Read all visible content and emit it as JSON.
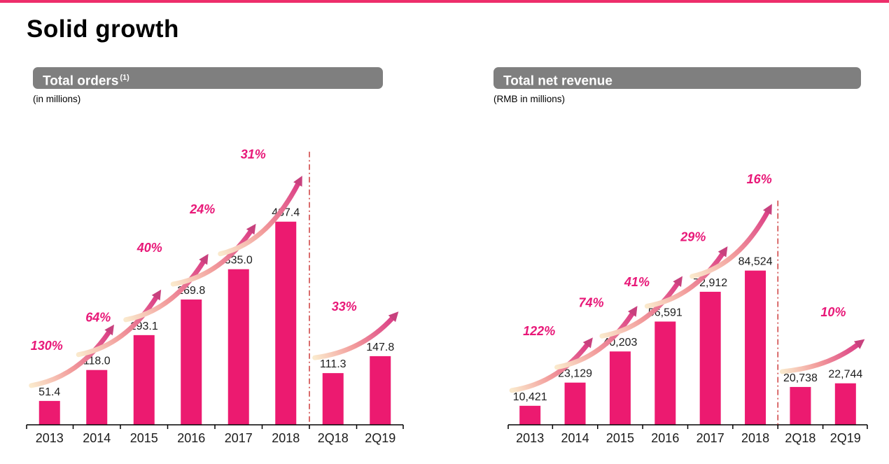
{
  "page": {
    "title": "Solid growth"
  },
  "colors": {
    "accent_bar": "#ED2E6B",
    "header_bg": "#7F7F7F",
    "bar": "#EC1A70",
    "percent_text": "#E81878",
    "divider": "#D04848",
    "axis": "#000000",
    "value_text": "#1C1C1C",
    "arrow_gradient": [
      "#FAE9CC",
      "#F29B9B",
      "#DB3E86"
    ],
    "arrow_head": "#C8417E"
  },
  "chart_data": [
    {
      "type": "bar",
      "title": "Total orders",
      "title_superscript": "(1)",
      "subtitle": "(in millions)",
      "categories": [
        "2013",
        "2014",
        "2015",
        "2016",
        "2017",
        "2018",
        "2Q18",
        "2Q19"
      ],
      "values": [
        51.4,
        118.0,
        193.1,
        269.8,
        335.0,
        437.4,
        111.3,
        147.8
      ],
      "value_labels": [
        "51.4",
        "118.0",
        "193.1",
        "269.8",
        "335.0",
        "437.4",
        "111.3",
        "147.8"
      ],
      "growth_labels": [
        {
          "label": "130%",
          "from": 0,
          "to": 1,
          "label_offset": [
            -4,
            -73
          ]
        },
        {
          "label": "64%",
          "from": 1,
          "to": 2,
          "label_offset": [
            2,
            -69
          ]
        },
        {
          "label": "40%",
          "from": 2,
          "to": 3,
          "label_offset": [
            8,
            -119
          ]
        },
        {
          "label": "24%",
          "from": 3,
          "to": 4,
          "label_offset": [
            16,
            -123
          ]
        },
        {
          "label": "31%",
          "from": 4,
          "to": 5,
          "label_offset": [
            21,
            -158
          ]
        },
        {
          "label": "33%",
          "from": 6,
          "to": 7,
          "label_offset": [
            16,
            -89
          ]
        }
      ],
      "divider_after_index": 5,
      "ylim": [
        0,
        550
      ],
      "grid": false,
      "legend": "none"
    },
    {
      "type": "bar",
      "title": "Total net revenue",
      "title_superscript": "",
      "subtitle": "(RMB in millions)",
      "categories": [
        "2013",
        "2014",
        "2015",
        "2016",
        "2017",
        "2018",
        "2Q18",
        "2Q19"
      ],
      "values": [
        10421,
        23129,
        40203,
        56591,
        72912,
        84524,
        20738,
        22744
      ],
      "value_labels": [
        "10,421",
        "23,129",
        "40,203",
        "56,591",
        "72,912",
        "84,524",
        "20,738",
        "22,744"
      ],
      "growth_labels": [
        {
          "label": "122%",
          "from": 0,
          "to": 1,
          "label_offset": [
            13,
            -101
          ]
        },
        {
          "label": "74%",
          "from": 1,
          "to": 2,
          "label_offset": [
            23,
            -108
          ]
        },
        {
          "label": "41%",
          "from": 2,
          "to": 3,
          "label_offset": [
            24,
            -93
          ]
        },
        {
          "label": "29%",
          "from": 3,
          "to": 4,
          "label_offset": [
            40,
            -115
          ]
        },
        {
          "label": "16%",
          "from": 4,
          "to": 5,
          "label_offset": [
            70,
            -155
          ]
        },
        {
          "label": "10%",
          "from": 6,
          "to": 7,
          "label_offset": [
            47,
            -101
          ]
        }
      ],
      "divider_after_index": 5,
      "ylim": [
        0,
        140000
      ],
      "grid": false,
      "legend": "none"
    }
  ]
}
